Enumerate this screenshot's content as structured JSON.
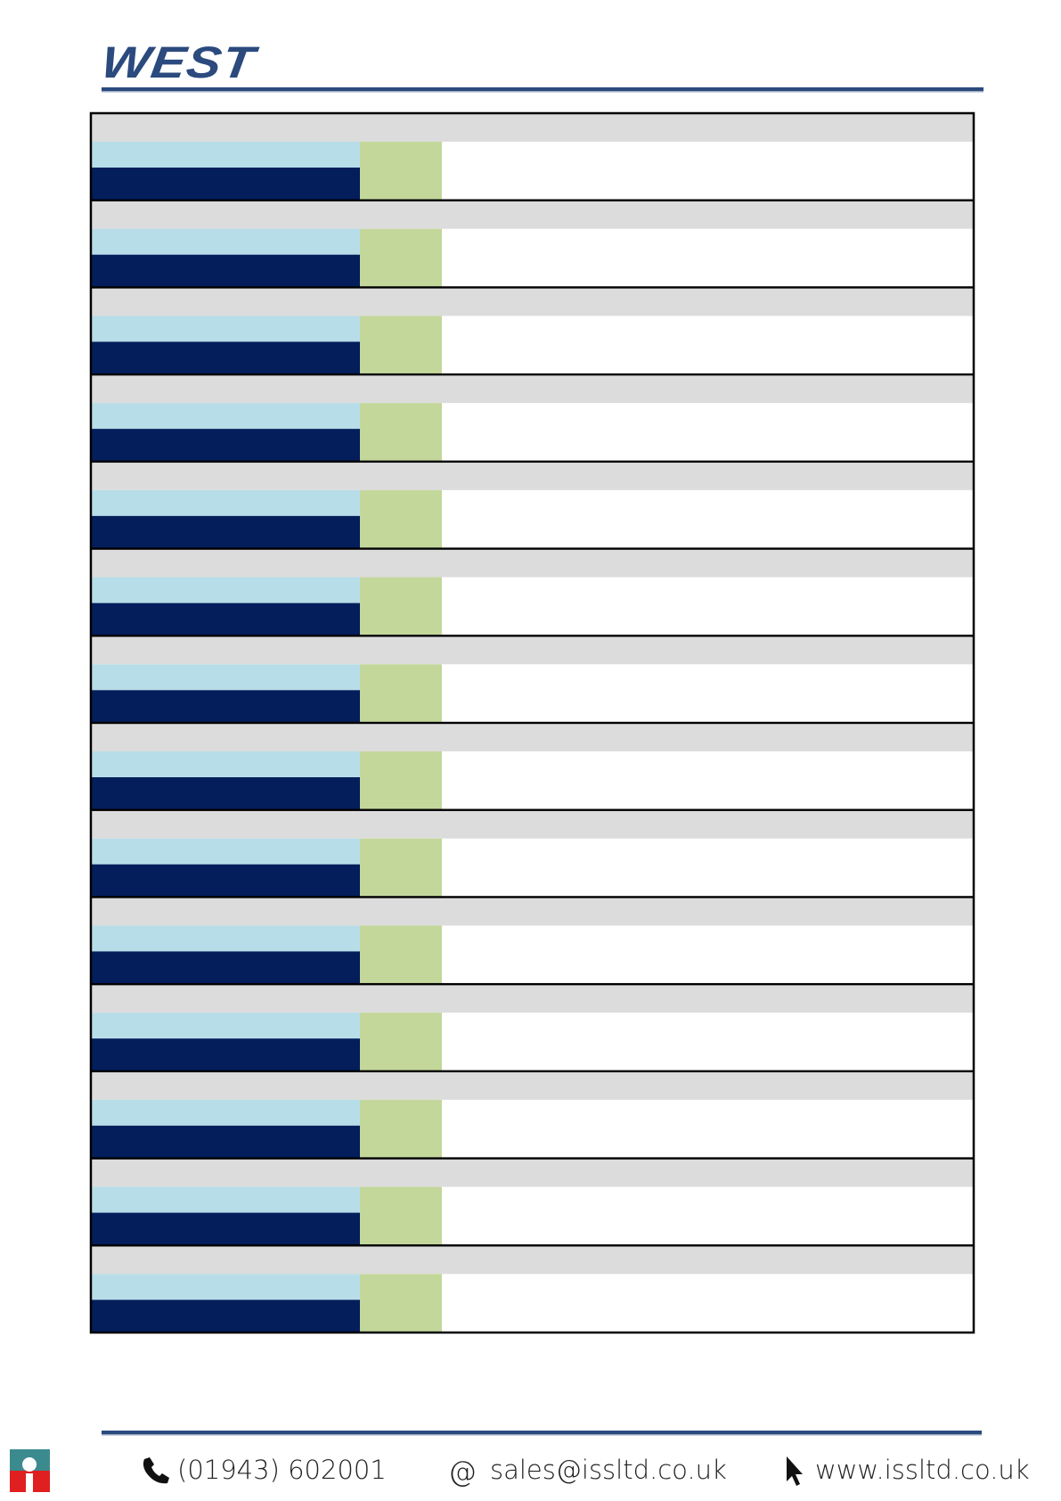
{
  "header": {
    "logo": "WEST"
  },
  "footer": {
    "phone": "(01943) 602001",
    "email": "sales@issltd.co.uk",
    "website": "www.issltd.co.uk"
  }
}
